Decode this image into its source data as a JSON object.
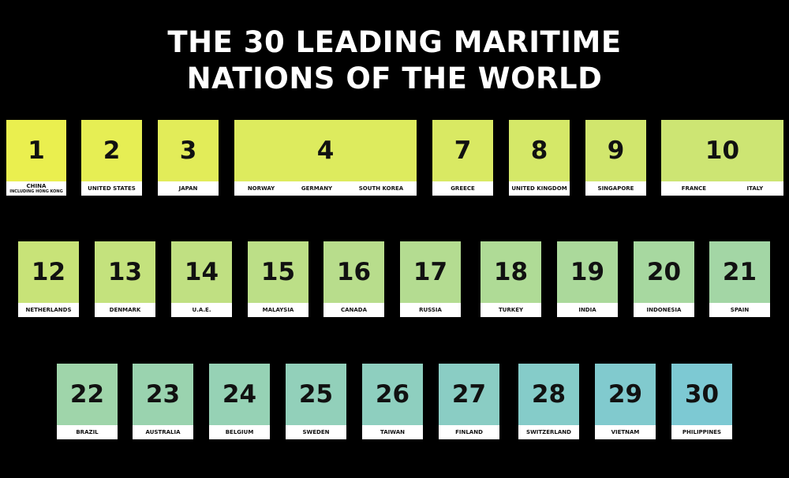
{
  "title": [
    "THE 30 LEADING MARITIME",
    "NATIONS OF THE WORLD"
  ],
  "rows": [
    {
      "cards": [
        {
          "rank": 1,
          "countries": [
            "CHINA"
          ],
          "note": "INCLUDING HONG KONG"
        },
        {
          "rank": 2,
          "countries": [
            "UNITED STATES"
          ]
        },
        {
          "rank": 3,
          "countries": [
            "JAPAN"
          ]
        },
        {
          "rank": 4,
          "countries": [
            "NORWAY",
            "GERMANY",
            "SOUTH KOREA"
          ]
        },
        {
          "rank": 7,
          "countries": [
            "GREECE"
          ]
        },
        {
          "rank": 8,
          "countries": [
            "UNITED KINGDOM"
          ]
        },
        {
          "rank": 9,
          "countries": [
            "SINGAPORE"
          ]
        },
        {
          "rank": 10,
          "countries": [
            "FRANCE",
            "ITALY"
          ]
        }
      ]
    },
    {
      "cards": [
        {
          "rank": 12,
          "countries": [
            "NETHERLANDS"
          ]
        },
        {
          "rank": 13,
          "countries": [
            "DENMARK"
          ]
        },
        {
          "rank": 14,
          "countries": [
            "U.A.E."
          ]
        },
        {
          "rank": 15,
          "countries": [
            "MALAYSIA"
          ]
        },
        {
          "rank": 16,
          "countries": [
            "CANADA"
          ]
        },
        {
          "rank": 17,
          "countries": [
            "RUSSIA"
          ]
        },
        {
          "rank": 18,
          "countries": [
            "TURKEY"
          ]
        },
        {
          "rank": 19,
          "countries": [
            "INDIA"
          ]
        },
        {
          "rank": 20,
          "countries": [
            "INDONESIA"
          ]
        },
        {
          "rank": 21,
          "countries": [
            "SPAIN"
          ]
        }
      ]
    },
    {
      "cards": [
        {
          "rank": 22,
          "countries": [
            "BRAZIL"
          ]
        },
        {
          "rank": 23,
          "countries": [
            "AUSTRALIA"
          ]
        },
        {
          "rank": 24,
          "countries": [
            "BELGIUM"
          ]
        },
        {
          "rank": 25,
          "countries": [
            "SWEDEN"
          ]
        },
        {
          "rank": 26,
          "countries": [
            "TAIWAN"
          ]
        },
        {
          "rank": 27,
          "countries": [
            "FINLAND"
          ]
        },
        {
          "rank": 28,
          "countries": [
            "SWITZERLAND"
          ]
        },
        {
          "rank": 29,
          "countries": [
            "VIETNAM"
          ]
        },
        {
          "rank": 30,
          "countries": [
            "PHILIPPINES"
          ]
        }
      ]
    }
  ]
}
